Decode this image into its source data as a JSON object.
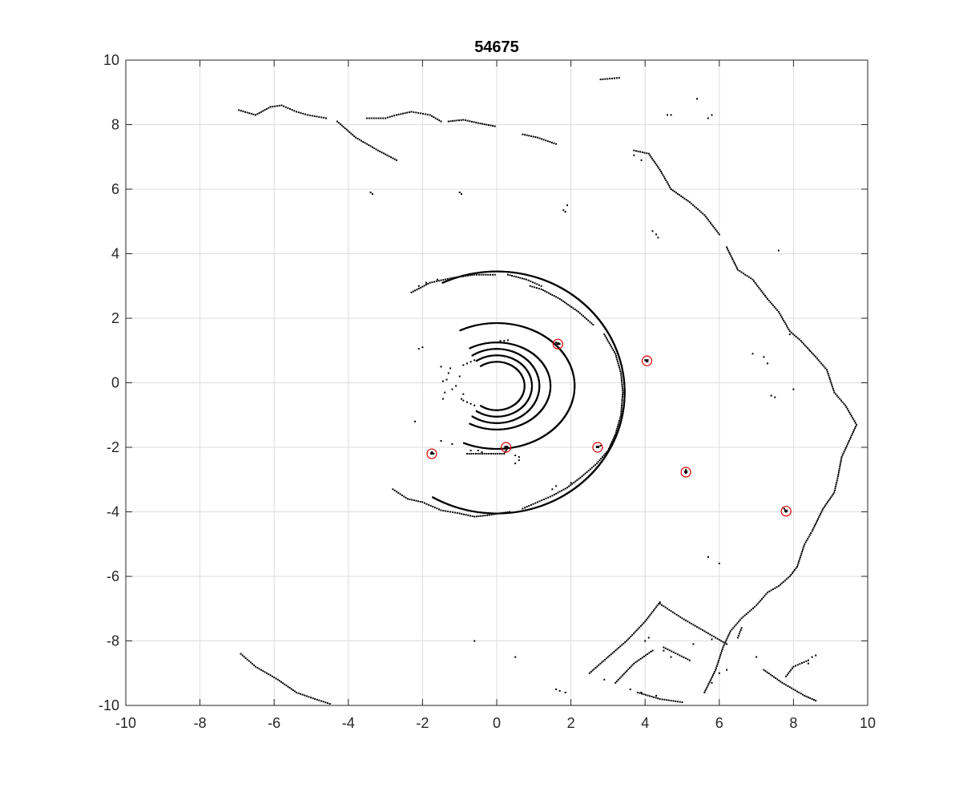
{
  "chart_data": {
    "type": "scatter",
    "title": "54675",
    "xlabel": "",
    "ylabel": "",
    "xlim": [
      -10,
      10
    ],
    "ylim": [
      -10,
      10
    ],
    "xticks": [
      -10,
      -8,
      -6,
      -4,
      -2,
      0,
      2,
      4,
      6,
      8,
      10
    ],
    "yticks": [
      -10,
      -8,
      -6,
      -4,
      -2,
      0,
      2,
      4,
      6,
      8,
      10
    ],
    "grid": true,
    "colors": {
      "points": "#000000",
      "markers": "#e00000",
      "grid": "#dcdcdc",
      "axes": "#262626"
    },
    "series": [
      {
        "kind": "rings",
        "rings": [
          {
            "cx": 0,
            "cy": -0.1,
            "rx": 0.75,
            "ry": 0.75,
            "a0": -125,
            "a1": 125
          },
          {
            "cx": 0,
            "cy": -0.1,
            "rx": 0.95,
            "ry": 0.95,
            "a0": -125,
            "a1": 125
          },
          {
            "cx": 0,
            "cy": -0.1,
            "rx": 1.15,
            "ry": 1.15,
            "a0": -125,
            "a1": 125
          },
          {
            "cx": 0,
            "cy": -0.1,
            "rx": 1.45,
            "ry": 1.35,
            "a0": -120,
            "a1": 120
          },
          {
            "cx": 0,
            "cy": -0.1,
            "rx": 2.1,
            "ry": 1.95,
            "a0": -115,
            "a1": 118
          },
          {
            "cx": 0,
            "cy": -0.3,
            "rx": 3.45,
            "ry": 3.75,
            "a0": -120,
            "a1": 115
          }
        ]
      },
      {
        "kind": "polylines",
        "lines": [
          [
            [
              -6.95,
              8.45
            ],
            [
              -6.5,
              8.3
            ],
            [
              -6.1,
              8.55
            ],
            [
              -5.8,
              8.6
            ],
            [
              -5.4,
              8.4
            ],
            [
              -5.1,
              8.3
            ],
            [
              -4.6,
              8.2
            ]
          ],
          [
            [
              -4.3,
              8.1
            ],
            [
              -3.8,
              7.6
            ],
            [
              -3.2,
              7.2
            ],
            [
              -2.7,
              6.9
            ]
          ],
          [
            [
              -3.5,
              8.2
            ],
            [
              -3.0,
              8.2
            ],
            [
              -2.7,
              8.3
            ],
            [
              -2.3,
              8.4
            ],
            [
              -1.8,
              8.3
            ],
            [
              -1.5,
              8.1
            ]
          ],
          [
            [
              -1.3,
              8.1
            ],
            [
              -0.9,
              8.15
            ],
            [
              -0.5,
              8.05
            ],
            [
              -0.05,
              7.95
            ]
          ],
          [
            [
              0.7,
              7.7
            ],
            [
              1.1,
              7.6
            ],
            [
              1.6,
              7.4
            ]
          ],
          [
            [
              2.8,
              9.4
            ],
            [
              3.3,
              9.45
            ]
          ],
          [
            [
              3.7,
              7.2
            ],
            [
              4.1,
              7.1
            ],
            [
              4.4,
              6.6
            ],
            [
              4.7,
              6.0
            ],
            [
              5.2,
              5.6
            ],
            [
              5.6,
              5.2
            ],
            [
              6.0,
              4.6
            ]
          ],
          [
            [
              6.2,
              4.2
            ],
            [
              6.5,
              3.5
            ],
            [
              6.9,
              3.2
            ],
            [
              7.3,
              2.6
            ],
            [
              7.6,
              2.2
            ],
            [
              7.9,
              1.6
            ],
            [
              8.2,
              1.3
            ],
            [
              8.6,
              0.8
            ],
            [
              8.9,
              0.4
            ],
            [
              9.1,
              -0.3
            ],
            [
              9.4,
              -0.7
            ],
            [
              9.7,
              -1.3
            ],
            [
              9.5,
              -1.8
            ],
            [
              9.3,
              -2.3
            ],
            [
              9.2,
              -2.9
            ],
            [
              9.1,
              -3.4
            ],
            [
              8.8,
              -3.9
            ],
            [
              8.5,
              -4.6
            ],
            [
              8.3,
              -5.0
            ],
            [
              8.1,
              -5.7
            ],
            [
              7.9,
              -6.0
            ],
            [
              7.6,
              -6.3
            ],
            [
              7.3,
              -6.5
            ],
            [
              7.0,
              -6.9
            ],
            [
              6.6,
              -7.3
            ],
            [
              6.3,
              -7.7
            ],
            [
              6.1,
              -8.2
            ],
            [
              5.9,
              -8.9
            ],
            [
              5.6,
              -9.6
            ]
          ],
          [
            [
              7.2,
              -8.9
            ],
            [
              7.7,
              -9.3
            ],
            [
              8.3,
              -9.7
            ],
            [
              8.6,
              -9.85
            ]
          ],
          [
            [
              -6.9,
              -8.4
            ],
            [
              -6.5,
              -8.8
            ],
            [
              -5.9,
              -9.2
            ],
            [
              -5.4,
              -9.6
            ],
            [
              -4.9,
              -9.8
            ],
            [
              -4.5,
              -9.95
            ]
          ],
          [
            [
              2.5,
              -9.0
            ],
            [
              3.0,
              -8.5
            ],
            [
              3.5,
              -8.0
            ],
            [
              4.0,
              -7.4
            ],
            [
              4.4,
              -6.8
            ]
          ],
          [
            [
              3.2,
              -9.3
            ],
            [
              3.7,
              -8.7
            ],
            [
              4.2,
              -8.3
            ]
          ],
          [
            [
              4.4,
              -6.85
            ],
            [
              5.0,
              -7.3
            ],
            [
              5.6,
              -7.7
            ],
            [
              6.2,
              -8.1
            ]
          ],
          [
            [
              4.5,
              -8.2
            ],
            [
              5.2,
              -8.6
            ]
          ],
          [
            [
              8.4,
              -8.6
            ],
            [
              8.0,
              -8.8
            ],
            [
              7.8,
              -9.1
            ]
          ],
          [
            [
              3.8,
              -9.6
            ],
            [
              4.4,
              -9.8
            ],
            [
              5.0,
              -9.9
            ]
          ],
          [
            [
              6.6,
              -7.6
            ],
            [
              6.5,
              -7.9
            ]
          ],
          [
            [
              -2.8,
              -3.3
            ],
            [
              -2.4,
              -3.6
            ],
            [
              -2.0,
              -3.7
            ],
            [
              -1.5,
              -3.95
            ],
            [
              -1.0,
              -4.05
            ],
            [
              -0.6,
              -4.15
            ],
            [
              -0.2,
              -4.1
            ],
            [
              0.35,
              -4.0
            ]
          ],
          [
            [
              0.7,
              -3.9
            ],
            [
              1.1,
              -3.7
            ],
            [
              1.5,
              -3.5
            ],
            [
              1.9,
              -3.25
            ],
            [
              2.3,
              -2.9
            ],
            [
              2.7,
              -2.5
            ],
            [
              3.0,
              -2.1
            ],
            [
              3.2,
              -1.6
            ],
            [
              3.35,
              -1.0
            ],
            [
              3.4,
              -0.3
            ],
            [
              3.35,
              0.3
            ],
            [
              3.2,
              0.9
            ],
            [
              2.9,
              1.5
            ]
          ],
          [
            [
              2.6,
              1.8
            ],
            [
              2.2,
              2.2
            ],
            [
              1.7,
              2.6
            ],
            [
              1.2,
              2.9
            ],
            [
              0.9,
              3.0
            ]
          ],
          [
            [
              -2.3,
              2.8
            ],
            [
              -1.8,
              3.1
            ],
            [
              -1.2,
              3.25
            ],
            [
              -0.6,
              3.35
            ],
            [
              -0.05,
              3.35
            ]
          ],
          [
            [
              0.3,
              3.35
            ],
            [
              0.8,
              3.2
            ],
            [
              1.2,
              3.0
            ]
          ],
          [
            [
              0.3,
              -2.0
            ],
            [
              0.2,
              -2.2
            ],
            [
              -0.8,
              -2.2
            ]
          ],
          [
            [
              1.7,
              1.2
            ],
            [
              1.6,
              1.25
            ]
          ],
          [
            [
              2.7,
              -2.0
            ],
            [
              2.8,
              -1.95
            ]
          ],
          [
            [
              7.8,
              -4.0
            ],
            [
              7.75,
              -3.9
            ]
          ]
        ]
      },
      {
        "kind": "scatter",
        "points": [
          [
            -3.4,
            5.9
          ],
          [
            -3.35,
            5.85
          ],
          [
            -1.0,
            5.9
          ],
          [
            -0.95,
            5.85
          ],
          [
            1.8,
            5.35
          ],
          [
            1.85,
            5.3
          ],
          [
            1.9,
            5.5
          ],
          [
            4.3,
            4.6
          ],
          [
            4.35,
            4.5
          ],
          [
            4.2,
            4.7
          ],
          [
            4.6,
            8.3
          ],
          [
            4.7,
            8.3
          ],
          [
            5.4,
            8.8
          ],
          [
            5.7,
            8.2
          ],
          [
            5.8,
            8.3
          ],
          [
            7.6,
            4.1
          ],
          [
            7.9,
            1.5
          ],
          [
            6.9,
            0.9
          ],
          [
            7.2,
            0.8
          ],
          [
            7.3,
            0.6
          ],
          [
            7.4,
            -0.4
          ],
          [
            7.5,
            -0.45
          ],
          [
            8.0,
            -0.2
          ],
          [
            -2.0,
            1.1
          ],
          [
            -2.1,
            1.05
          ],
          [
            -1.7,
            -2.2
          ],
          [
            -1.75,
            -2.15
          ],
          [
            4.0,
            0.7
          ],
          [
            4.05,
            0.65
          ],
          [
            5.1,
            -2.8
          ],
          [
            5.1,
            -2.7
          ],
          [
            6.0,
            -5.6
          ],
          [
            5.7,
            -5.4
          ],
          [
            -1.3,
            0.3
          ],
          [
            -1.35,
            0.1
          ],
          [
            -1.2,
            -0.2
          ],
          [
            -1.4,
            -0.3
          ],
          [
            -1.1,
            -0.1
          ],
          [
            -1.0,
            0.2
          ],
          [
            -0.9,
            -0.35
          ],
          [
            -1.45,
            0.05
          ],
          [
            -1.25,
            0.45
          ],
          [
            -0.95,
            -0.5
          ],
          [
            -0.8,
            0.6
          ],
          [
            -0.7,
            0.65
          ],
          [
            -0.8,
            -0.6
          ],
          [
            -0.7,
            -0.65
          ],
          [
            -0.6,
            0.7
          ],
          [
            -0.6,
            -0.7
          ],
          [
            -0.9,
            0.55
          ],
          [
            -0.9,
            -0.55
          ],
          [
            0.1,
            1.3
          ],
          [
            0.2,
            1.3
          ],
          [
            0.0,
            1.25
          ],
          [
            0.3,
            1.32
          ],
          [
            -0.5,
            -2.1
          ],
          [
            -0.4,
            -2.15
          ],
          [
            0.5,
            -2.25
          ],
          [
            0.6,
            -2.3
          ],
          [
            -1.5,
            -1.8
          ],
          [
            -1.2,
            -1.9
          ],
          [
            -2.2,
            -1.2
          ],
          [
            -1.5,
            0.5
          ],
          [
            -1.45,
            -0.5
          ],
          [
            0.5,
            -8.5
          ],
          [
            -0.6,
            -8.0
          ],
          [
            1.6,
            -9.5
          ],
          [
            1.7,
            -9.55
          ],
          [
            1.85,
            -9.6
          ],
          [
            4.0,
            -8.0
          ],
          [
            4.1,
            -7.9
          ],
          [
            4.5,
            -8.3
          ],
          [
            4.7,
            -8.5
          ],
          [
            5.3,
            -8.1
          ],
          [
            5.8,
            -7.95
          ],
          [
            2.9,
            -9.2
          ],
          [
            3.6,
            -9.5
          ],
          [
            3.9,
            -9.6
          ],
          [
            4.3,
            -9.7
          ],
          [
            5.8,
            -9.3
          ],
          [
            6.0,
            -9.0
          ],
          [
            6.2,
            -8.9
          ],
          [
            7.0,
            -8.5
          ],
          [
            8.4,
            -8.7
          ],
          [
            8.5,
            -8.5
          ],
          [
            8.6,
            -8.45
          ],
          [
            3.9,
            6.9
          ],
          [
            3.7,
            7.05
          ],
          [
            -2.1,
            3.0
          ],
          [
            -1.9,
            3.1
          ],
          [
            -1.6,
            3.2
          ],
          [
            -0.7,
            -2.1
          ],
          [
            0.1,
            -2.05
          ],
          [
            1.5,
            -3.3
          ],
          [
            1.6,
            -3.2
          ],
          [
            2.0,
            -3.1
          ],
          [
            0.6,
            -2.4
          ],
          [
            0.5,
            -2.5
          ]
        ]
      }
    ],
    "markers": [
      [
        1.65,
        1.2
      ],
      [
        4.05,
        0.68
      ],
      [
        -1.75,
        -2.2
      ],
      [
        0.25,
        -2.0
      ],
      [
        2.72,
        -2.0
      ],
      [
        5.1,
        -2.77
      ],
      [
        7.8,
        -3.98
      ]
    ]
  }
}
